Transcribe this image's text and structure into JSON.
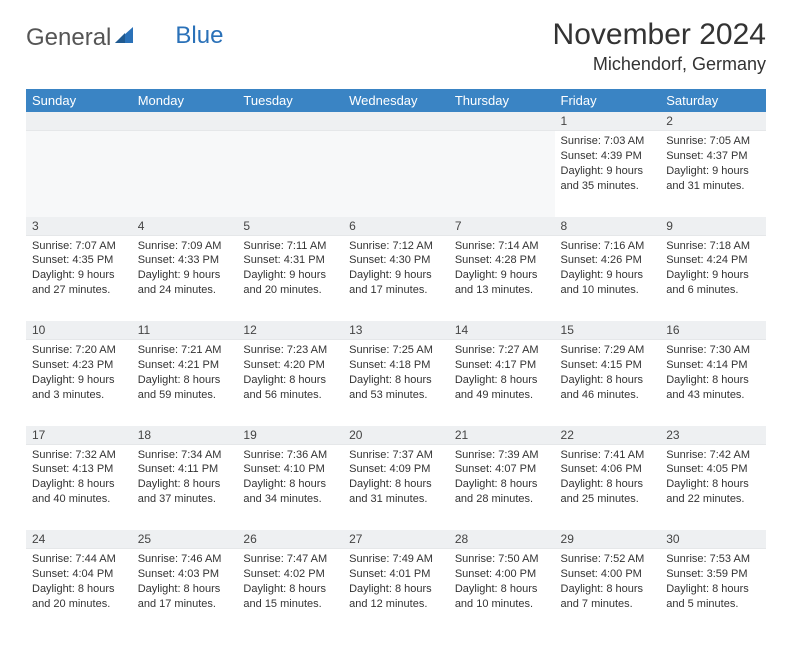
{
  "brand": {
    "word1": "General",
    "word2": "Blue"
  },
  "title": "November 2024",
  "location": "Michendorf, Germany",
  "colors": {
    "header_bg": "#3a84c4",
    "header_text": "#ffffff",
    "daynum_bg": "#eef0f2",
    "text": "#333333",
    "brand_blue": "#2a71b8"
  },
  "weekdays": [
    "Sunday",
    "Monday",
    "Tuesday",
    "Wednesday",
    "Thursday",
    "Friday",
    "Saturday"
  ],
  "weeks": [
    [
      null,
      null,
      null,
      null,
      null,
      {
        "n": "1",
        "sr": "Sunrise: 7:03 AM",
        "ss": "Sunset: 4:39 PM",
        "dl1": "Daylight: 9 hours",
        "dl2": "and 35 minutes."
      },
      {
        "n": "2",
        "sr": "Sunrise: 7:05 AM",
        "ss": "Sunset: 4:37 PM",
        "dl1": "Daylight: 9 hours",
        "dl2": "and 31 minutes."
      }
    ],
    [
      {
        "n": "3",
        "sr": "Sunrise: 7:07 AM",
        "ss": "Sunset: 4:35 PM",
        "dl1": "Daylight: 9 hours",
        "dl2": "and 27 minutes."
      },
      {
        "n": "4",
        "sr": "Sunrise: 7:09 AM",
        "ss": "Sunset: 4:33 PM",
        "dl1": "Daylight: 9 hours",
        "dl2": "and 24 minutes."
      },
      {
        "n": "5",
        "sr": "Sunrise: 7:11 AM",
        "ss": "Sunset: 4:31 PM",
        "dl1": "Daylight: 9 hours",
        "dl2": "and 20 minutes."
      },
      {
        "n": "6",
        "sr": "Sunrise: 7:12 AM",
        "ss": "Sunset: 4:30 PM",
        "dl1": "Daylight: 9 hours",
        "dl2": "and 17 minutes."
      },
      {
        "n": "7",
        "sr": "Sunrise: 7:14 AM",
        "ss": "Sunset: 4:28 PM",
        "dl1": "Daylight: 9 hours",
        "dl2": "and 13 minutes."
      },
      {
        "n": "8",
        "sr": "Sunrise: 7:16 AM",
        "ss": "Sunset: 4:26 PM",
        "dl1": "Daylight: 9 hours",
        "dl2": "and 10 minutes."
      },
      {
        "n": "9",
        "sr": "Sunrise: 7:18 AM",
        "ss": "Sunset: 4:24 PM",
        "dl1": "Daylight: 9 hours",
        "dl2": "and 6 minutes."
      }
    ],
    [
      {
        "n": "10",
        "sr": "Sunrise: 7:20 AM",
        "ss": "Sunset: 4:23 PM",
        "dl1": "Daylight: 9 hours",
        "dl2": "and 3 minutes."
      },
      {
        "n": "11",
        "sr": "Sunrise: 7:21 AM",
        "ss": "Sunset: 4:21 PM",
        "dl1": "Daylight: 8 hours",
        "dl2": "and 59 minutes."
      },
      {
        "n": "12",
        "sr": "Sunrise: 7:23 AM",
        "ss": "Sunset: 4:20 PM",
        "dl1": "Daylight: 8 hours",
        "dl2": "and 56 minutes."
      },
      {
        "n": "13",
        "sr": "Sunrise: 7:25 AM",
        "ss": "Sunset: 4:18 PM",
        "dl1": "Daylight: 8 hours",
        "dl2": "and 53 minutes."
      },
      {
        "n": "14",
        "sr": "Sunrise: 7:27 AM",
        "ss": "Sunset: 4:17 PM",
        "dl1": "Daylight: 8 hours",
        "dl2": "and 49 minutes."
      },
      {
        "n": "15",
        "sr": "Sunrise: 7:29 AM",
        "ss": "Sunset: 4:15 PM",
        "dl1": "Daylight: 8 hours",
        "dl2": "and 46 minutes."
      },
      {
        "n": "16",
        "sr": "Sunrise: 7:30 AM",
        "ss": "Sunset: 4:14 PM",
        "dl1": "Daylight: 8 hours",
        "dl2": "and 43 minutes."
      }
    ],
    [
      {
        "n": "17",
        "sr": "Sunrise: 7:32 AM",
        "ss": "Sunset: 4:13 PM",
        "dl1": "Daylight: 8 hours",
        "dl2": "and 40 minutes."
      },
      {
        "n": "18",
        "sr": "Sunrise: 7:34 AM",
        "ss": "Sunset: 4:11 PM",
        "dl1": "Daylight: 8 hours",
        "dl2": "and 37 minutes."
      },
      {
        "n": "19",
        "sr": "Sunrise: 7:36 AM",
        "ss": "Sunset: 4:10 PM",
        "dl1": "Daylight: 8 hours",
        "dl2": "and 34 minutes."
      },
      {
        "n": "20",
        "sr": "Sunrise: 7:37 AM",
        "ss": "Sunset: 4:09 PM",
        "dl1": "Daylight: 8 hours",
        "dl2": "and 31 minutes."
      },
      {
        "n": "21",
        "sr": "Sunrise: 7:39 AM",
        "ss": "Sunset: 4:07 PM",
        "dl1": "Daylight: 8 hours",
        "dl2": "and 28 minutes."
      },
      {
        "n": "22",
        "sr": "Sunrise: 7:41 AM",
        "ss": "Sunset: 4:06 PM",
        "dl1": "Daylight: 8 hours",
        "dl2": "and 25 minutes."
      },
      {
        "n": "23",
        "sr": "Sunrise: 7:42 AM",
        "ss": "Sunset: 4:05 PM",
        "dl1": "Daylight: 8 hours",
        "dl2": "and 22 minutes."
      }
    ],
    [
      {
        "n": "24",
        "sr": "Sunrise: 7:44 AM",
        "ss": "Sunset: 4:04 PM",
        "dl1": "Daylight: 8 hours",
        "dl2": "and 20 minutes."
      },
      {
        "n": "25",
        "sr": "Sunrise: 7:46 AM",
        "ss": "Sunset: 4:03 PM",
        "dl1": "Daylight: 8 hours",
        "dl2": "and 17 minutes."
      },
      {
        "n": "26",
        "sr": "Sunrise: 7:47 AM",
        "ss": "Sunset: 4:02 PM",
        "dl1": "Daylight: 8 hours",
        "dl2": "and 15 minutes."
      },
      {
        "n": "27",
        "sr": "Sunrise: 7:49 AM",
        "ss": "Sunset: 4:01 PM",
        "dl1": "Daylight: 8 hours",
        "dl2": "and 12 minutes."
      },
      {
        "n": "28",
        "sr": "Sunrise: 7:50 AM",
        "ss": "Sunset: 4:00 PM",
        "dl1": "Daylight: 8 hours",
        "dl2": "and 10 minutes."
      },
      {
        "n": "29",
        "sr": "Sunrise: 7:52 AM",
        "ss": "Sunset: 4:00 PM",
        "dl1": "Daylight: 8 hours",
        "dl2": "and 7 minutes."
      },
      {
        "n": "30",
        "sr": "Sunrise: 7:53 AM",
        "ss": "Sunset: 3:59 PM",
        "dl1": "Daylight: 8 hours",
        "dl2": "and 5 minutes."
      }
    ]
  ]
}
